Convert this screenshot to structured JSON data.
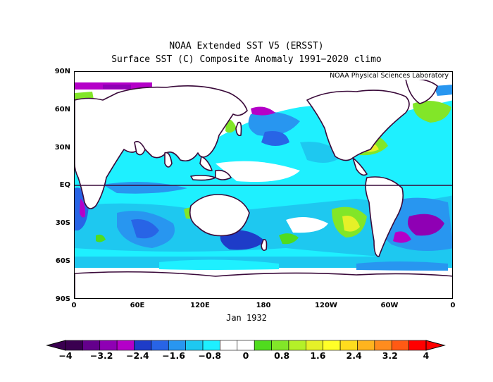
{
  "title": "NOAA Extended SST V5 (ERSST)",
  "subtitle": "Surface SST (C) Composite Anomaly 1991−2020 climo",
  "credit": "NOAA Physical Sciences Laboratory",
  "date_label": "Jan 1932",
  "lat_labels": [
    "90N",
    "60N",
    "30N",
    "EQ",
    "30S",
    "60S",
    "90S"
  ],
  "lon_labels": [
    "0",
    "60E",
    "120E",
    "180",
    "120W",
    "60W",
    "0"
  ],
  "colorbar": {
    "labels": [
      "−4",
      "−3.2",
      "−2.4",
      "−1.6",
      "−0.8",
      "0",
      "0.8",
      "1.6",
      "2.4",
      "3.2",
      "4"
    ],
    "colors": [
      "#3a0050",
      "#64008c",
      "#8f00b4",
      "#b400c8",
      "#1e3cc8",
      "#2864e6",
      "#2896f0",
      "#1ec8f0",
      "#1ef0ff",
      "#ffffff",
      "#ffffff",
      "#50dc1e",
      "#82e628",
      "#b4f028",
      "#e6f028",
      "#ffff28",
      "#ffdc1e",
      "#ffb41e",
      "#ff8c1e",
      "#ff5a14",
      "#ff0000"
    ]
  },
  "legend_units": "C"
}
